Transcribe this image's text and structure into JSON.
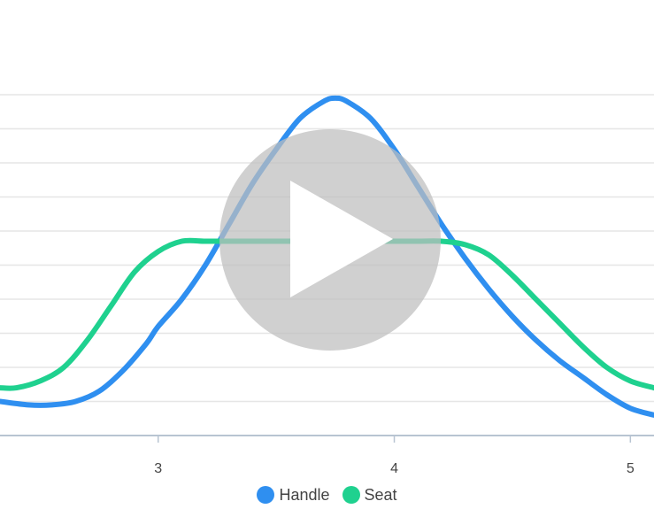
{
  "chart_data": {
    "type": "line",
    "title": "",
    "xlabel": "",
    "ylabel": "",
    "xlim": [
      2.33,
      5.1
    ],
    "ylim": [
      0,
      10
    ],
    "grid": true,
    "legend_position": "bottom-center",
    "x_ticks": [
      {
        "value": 3,
        "label": "3"
      },
      {
        "value": 4,
        "label": "4"
      },
      {
        "value": 5,
        "label": "5"
      }
    ],
    "series": [
      {
        "name": "Handle",
        "color": "#2f8ff0",
        "x": [
          2.33,
          2.45,
          2.55,
          2.65,
          2.75,
          2.85,
          2.95,
          3.0,
          3.1,
          3.2,
          3.3,
          3.4,
          3.5,
          3.6,
          3.7,
          3.75,
          3.8,
          3.9,
          4.0,
          4.1,
          4.2,
          4.3,
          4.4,
          4.5,
          4.6,
          4.7,
          4.8,
          4.9,
          5.0,
          5.1
        ],
        "y": [
          1.0,
          0.9,
          0.9,
          1.0,
          1.3,
          1.9,
          2.7,
          3.2,
          4.0,
          5.0,
          6.2,
          7.4,
          8.4,
          9.3,
          9.8,
          9.9,
          9.8,
          9.3,
          8.4,
          7.3,
          6.2,
          5.2,
          4.3,
          3.5,
          2.8,
          2.2,
          1.7,
          1.2,
          0.8,
          0.6
        ]
      },
      {
        "name": "Seat",
        "color": "#1fd18f",
        "x": [
          2.33,
          2.4,
          2.5,
          2.6,
          2.7,
          2.8,
          2.9,
          3.0,
          3.1,
          3.2,
          3.3,
          3.4,
          3.5,
          3.6,
          3.7,
          3.8,
          3.9,
          4.0,
          4.1,
          4.2,
          4.3,
          4.4,
          4.5,
          4.6,
          4.7,
          4.8,
          4.9,
          5.0,
          5.1
        ],
        "y": [
          1.4,
          1.4,
          1.6,
          2.0,
          2.8,
          3.8,
          4.8,
          5.4,
          5.7,
          5.7,
          5.7,
          5.7,
          5.7,
          5.7,
          5.7,
          5.7,
          5.7,
          5.7,
          5.7,
          5.7,
          5.6,
          5.3,
          4.7,
          4.0,
          3.3,
          2.6,
          2.0,
          1.6,
          1.4
        ]
      }
    ]
  },
  "overlay": {
    "icon": "play-icon",
    "color": "#bebebe"
  }
}
